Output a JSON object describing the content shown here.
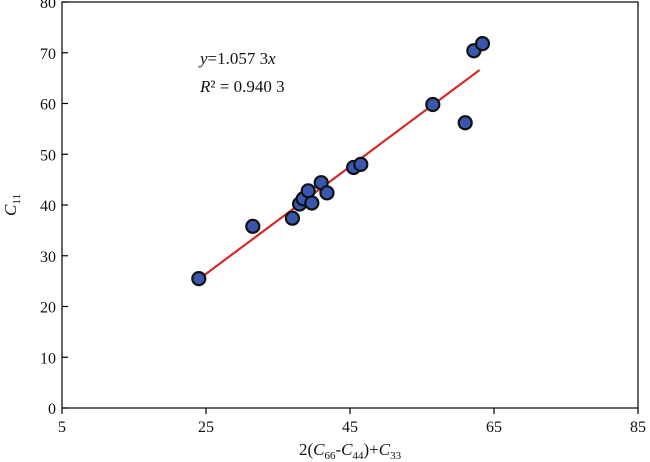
{
  "chart_data": {
    "type": "scatter",
    "xlim": [
      5,
      85
    ],
    "ylim": [
      0,
      80
    ],
    "xticks": [
      5,
      25,
      45,
      65,
      85
    ],
    "yticks": [
      0,
      10,
      20,
      30,
      40,
      50,
      60,
      70,
      80
    ],
    "xlabel": {
      "base": "2(",
      "c1": "C",
      "s1": "66",
      "dash": "-",
      "c2": "C",
      "s2": "44",
      "close": ")+",
      "c3": "C",
      "s3": "33"
    },
    "ylabel": {
      "c": "C",
      "sub": "11"
    },
    "grid": false,
    "legend": "none",
    "points": [
      {
        "x": 24.0,
        "y": 25.5
      },
      {
        "x": 31.5,
        "y": 35.8
      },
      {
        "x": 37.0,
        "y": 37.4
      },
      {
        "x": 38.0,
        "y": 40.2
      },
      {
        "x": 38.5,
        "y": 41.2
      },
      {
        "x": 39.2,
        "y": 42.8
      },
      {
        "x": 39.7,
        "y": 40.4
      },
      {
        "x": 41.0,
        "y": 44.4
      },
      {
        "x": 41.8,
        "y": 42.4
      },
      {
        "x": 45.5,
        "y": 47.4
      },
      {
        "x": 46.5,
        "y": 48.0
      },
      {
        "x": 56.5,
        "y": 59.8
      },
      {
        "x": 61.0,
        "y": 56.2
      },
      {
        "x": 62.2,
        "y": 70.4
      },
      {
        "x": 63.4,
        "y": 71.8
      }
    ],
    "fit_line": {
      "slope": 1.0573,
      "x_range": [
        24,
        63
      ]
    },
    "annotation": {
      "equation_var": "y",
      "equation_rest": "=1.057 3",
      "equation_x": "x",
      "r2_var": "R",
      "r2_rest": "² = 0.940 3"
    },
    "colors": {
      "point_fill": "#3a57b0",
      "point_stroke": "#111111",
      "line": "#d42a2a",
      "axis": "#000000"
    }
  }
}
